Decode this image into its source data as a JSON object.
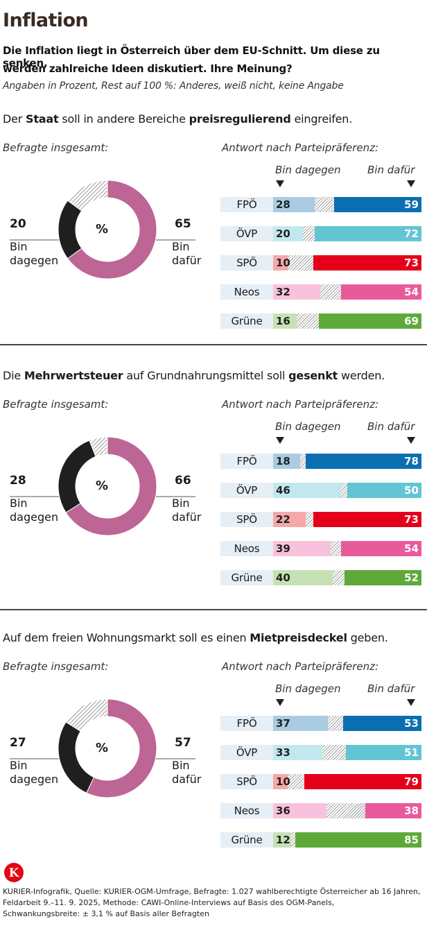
{
  "title": "Inflation",
  "subtitle_line1": "Die Inflation liegt in Österreich über dem EU-Schnitt. Um diese zu senken,",
  "subtitle_line2": "werden zahlreiche Ideen diskutiert. Ihre Meinung?",
  "note": "Angaben in Prozent, Rest auf 100 %: Anderes, weiß nicht, keine Angabe",
  "labels": {
    "total": "Befragte insgesamt:",
    "by_party": "Antwort nach Parteipräferenz:",
    "against": "Bin dagegen",
    "for": "Bin dafür",
    "bin": "Bin",
    "dagegen": "dagegen",
    "dafuer": "dafür",
    "percent": "%"
  },
  "colors": {
    "total_for": "#bd6594",
    "total_against": "#1f1f1f",
    "parties": {
      "FPÖ": {
        "strong": "#0a6fb0",
        "light": "#a9cce2"
      },
      "ÖVP": {
        "strong": "#62c5d3",
        "light": "#c2e8ef"
      },
      "SPÖ": {
        "strong": "#e4001b",
        "light": "#f5a8a8"
      },
      "Neos": {
        "strong": "#e95a9c",
        "light": "#f8c2dc"
      },
      "Grüne": {
        "strong": "#5ea93a",
        "light": "#c6e2b4"
      }
    }
  },
  "chart_data": [
    {
      "type": "bar",
      "question": {
        "pre": "Der ",
        "b1": "Staat",
        "mid": " soll in andere Bereiche ",
        "b2": "preisregulierend",
        "post": " eingreifen."
      },
      "total": {
        "against": 20,
        "for": 65
      },
      "parties": [
        {
          "name": "FPÖ",
          "against": 28,
          "for": 59
        },
        {
          "name": "ÖVP",
          "against": 20,
          "for": 72
        },
        {
          "name": "SPÖ",
          "against": 10,
          "for": 73
        },
        {
          "name": "Neos",
          "against": 32,
          "for": 54
        },
        {
          "name": "Grüne",
          "against": 16,
          "for": 69
        }
      ]
    },
    {
      "type": "bar",
      "question": {
        "pre": "Die ",
        "b1": "Mehrwertsteuer",
        "mid": " auf Grundnahrungsmittel soll ",
        "b2": "gesenkt",
        "post": " werden."
      },
      "total": {
        "against": 28,
        "for": 66
      },
      "parties": [
        {
          "name": "FPÖ",
          "against": 18,
          "for": 78
        },
        {
          "name": "ÖVP",
          "against": 46,
          "for": 50
        },
        {
          "name": "SPÖ",
          "against": 22,
          "for": 73
        },
        {
          "name": "Neos",
          "against": 39,
          "for": 54
        },
        {
          "name": "Grüne",
          "against": 40,
          "for": 52
        }
      ]
    },
    {
      "type": "bar",
      "question": {
        "pre": "Auf dem freien Wohnungsmarkt soll es einen ",
        "b1": "Mietpreisdeckel",
        "mid": " geben.",
        "b2": "",
        "post": ""
      },
      "total": {
        "against": 27,
        "for": 57
      },
      "parties": [
        {
          "name": "FPÖ",
          "against": 37,
          "for": 53
        },
        {
          "name": "ÖVP",
          "against": 33,
          "for": 51
        },
        {
          "name": "SPÖ",
          "against": 10,
          "for": 79
        },
        {
          "name": "Neos",
          "against": 36,
          "for": 38
        },
        {
          "name": "Grüne",
          "against": 12,
          "for": 85
        }
      ]
    }
  ],
  "footer": {
    "logo_letter": "K",
    "line1": "KURIER-Infografik, Quelle: KURIER-OGM-Umfrage, Befragte: 1.027 wahlberechtigte Österreicher ab 16 Jahren,",
    "line2": "Feldarbeit 9.–11. 9. 2025,  Methode: CAWI-Online-Interviews auf Basis des OGM-Panels,",
    "line3": "Schwankungsbreite: ± 3,1 % auf Basis aller Befragten"
  }
}
